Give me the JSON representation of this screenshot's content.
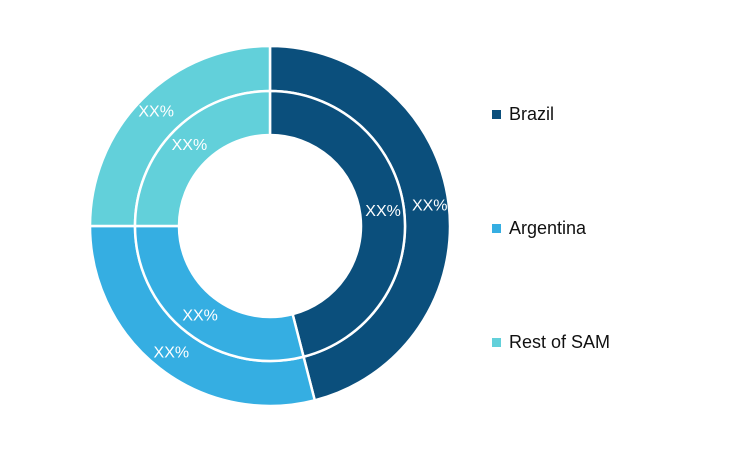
{
  "chart_data": {
    "type": "pie",
    "variant": "nested-donut",
    "legend_placement": "right",
    "categories": [
      "Brazil",
      "Argentina",
      "Rest of SAM"
    ],
    "colors": [
      "#0b4f7c",
      "#35aee2",
      "#62d0da"
    ],
    "rings": [
      {
        "ring": "outer",
        "values": [
          46,
          29,
          25
        ],
        "labels": [
          "XX%",
          "XX%",
          "XX%"
        ]
      },
      {
        "ring": "inner",
        "values": [
          46,
          29,
          25
        ],
        "labels": [
          "XX%",
          "XX%",
          "XX%"
        ]
      }
    ]
  }
}
